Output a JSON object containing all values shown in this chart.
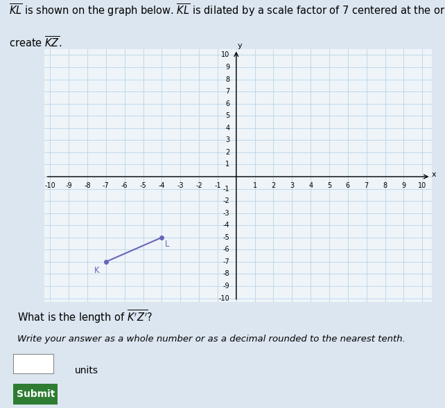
{
  "K": [
    -7,
    -7
  ],
  "L": [
    -4,
    -5
  ],
  "point_color": "#6666bb",
  "line_color": "#6666bb",
  "axis_range": [
    -10,
    10
  ],
  "grid_color": "#b8d4e8",
  "axis_color": "#000000",
  "background_color": "#dce6f0",
  "plot_background": "#eef4f8",
  "font_size_title": 10.5,
  "font_size_axis": 7,
  "font_size_labels": 8.5
}
